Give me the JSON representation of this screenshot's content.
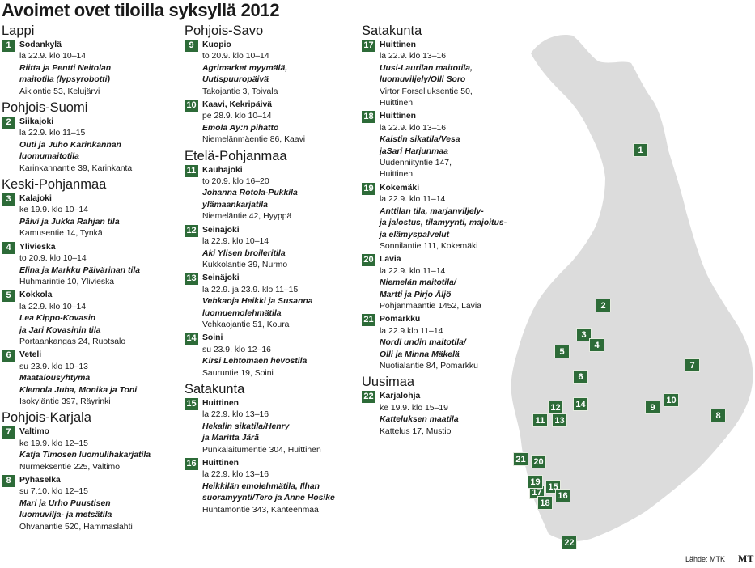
{
  "title": "Avoimet ovet tiloilla syksyllä 2012",
  "source": "Lähde: MTK",
  "logo": "MT",
  "col1": [
    {
      "region": "Lappi",
      "entries": [
        {
          "num": "1",
          "lines": [
            {
              "t": "Sodankylä",
              "s": "place"
            },
            {
              "t": "la 22.9. klo 10–14"
            },
            {
              "t": "Riitta ja Pentti Neitolan",
              "s": "farm"
            },
            {
              "t": "maitotila (lypsyrobotti)",
              "s": "farm"
            },
            {
              "t": "Aikiontie 53, Kelujärvi"
            }
          ]
        }
      ]
    },
    {
      "region": "Pohjois-Suomi",
      "entries": [
        {
          "num": "2",
          "lines": [
            {
              "t": "Siikajoki",
              "s": "place"
            },
            {
              "t": "la 22.9. klo 11–15"
            },
            {
              "t": "Outi ja Juho Karinkannan",
              "s": "farm"
            },
            {
              "t": "luomumaitotila",
              "s": "farm"
            },
            {
              "t": "Karinkannantie 39, Karinkanta"
            }
          ]
        }
      ]
    },
    {
      "region": "Keski-Pohjanmaa",
      "entries": [
        {
          "num": "3",
          "lines": [
            {
              "t": "Kalajoki",
              "s": "place"
            },
            {
              "t": "ke 19.9. klo 10–14"
            },
            {
              "t": "Päivi ja Jukka Rahjan tila",
              "s": "farm"
            },
            {
              "t": "Kamusentie 14, Tynkä"
            }
          ]
        },
        {
          "num": "4",
          "lines": [
            {
              "t": "Ylivieska",
              "s": "place"
            },
            {
              "t": "to 20.9. klo 10–14"
            },
            {
              "t": "Elina ja Markku Päivärinan tila",
              "s": "farm"
            },
            {
              "t": "Huhmarintie 10, Ylivieska"
            }
          ]
        },
        {
          "num": "5",
          "lines": [
            {
              "t": "Kokkola",
              "s": "place"
            },
            {
              "t": "la 22.9. klo 10–14"
            },
            {
              "t": "Lea Kippo-Kovasin",
              "s": "farm"
            },
            {
              "t": "ja Jari Kovasinin tila",
              "s": "farm"
            },
            {
              "t": "Portaankangas 24, Ruotsalo"
            }
          ]
        },
        {
          "num": "6",
          "lines": [
            {
              "t": "Veteli",
              "s": "place"
            },
            {
              "t": "su 23.9. klo 10–13"
            },
            {
              "t": "Maatalousyhtymä",
              "s": "farm"
            },
            {
              "t": "Klemola Juha, Monika ja Toni",
              "s": "farm"
            },
            {
              "t": "Isokyläntie 397, Räyrinki"
            }
          ]
        }
      ]
    },
    {
      "region": "Pohjois-Karjala",
      "entries": [
        {
          "num": "7",
          "lines": [
            {
              "t": "Valtimo",
              "s": "place"
            },
            {
              "t": "ke 19.9. klo 12–15"
            },
            {
              "t": "Katja Timosen luomulihakarjatila",
              "s": "farm"
            },
            {
              "t": "Nurmeksentie 225, Valtimo"
            }
          ]
        },
        {
          "num": "8",
          "lines": [
            {
              "t": "Pyhäselkä",
              "s": "place"
            },
            {
              "t": "su 7.10. klo 12–15"
            },
            {
              "t": "Mari ja Urho Puustisen",
              "s": "farm"
            },
            {
              "t": "luomuvilja- ja metsätila",
              "s": "farm"
            },
            {
              "t": "Ohvanantie 520, Hammaslahti"
            }
          ]
        }
      ]
    }
  ],
  "col2": [
    {
      "region": "Pohjois-Savo",
      "entries": [
        {
          "num": "9",
          "lines": [
            {
              "t": "Kuopio",
              "s": "place"
            },
            {
              "t": "to 20.9. klo 10–14"
            },
            {
              "t": "Agrimarket myymälä,",
              "s": "farm"
            },
            {
              "t": "Uutispuuropäivä",
              "s": "farm"
            },
            {
              "t": "Takojantie 3, Toivala"
            }
          ]
        },
        {
          "num": "10",
          "lines": [
            {
              "t": "Kaavi, Kekripäivä",
              "s": "place"
            },
            {
              "t": "pe 28.9. klo 10–14"
            },
            {
              "t": "Emola Ay:n pihatto",
              "s": "farm"
            },
            {
              "t": "Niemelänmäentie 86, Kaavi"
            }
          ]
        }
      ]
    },
    {
      "region": "Etelä-Pohjanmaa",
      "entries": [
        {
          "num": "11",
          "lines": [
            {
              "t": "Kauhajoki",
              "s": "place"
            },
            {
              "t": "to 20.9. klo 16–20"
            },
            {
              "t": "Johanna Rotola-Pukkila",
              "s": "farm"
            },
            {
              "t": "ylämaankarjatila",
              "s": "farm"
            },
            {
              "t": "Niemeläntie 42, Hyyppä"
            }
          ]
        },
        {
          "num": "12",
          "lines": [
            {
              "t": "Seinäjoki",
              "s": "place"
            },
            {
              "t": "la 22.9. klo 10–14"
            },
            {
              "t": "Aki Ylisen broileritila",
              "s": "farm"
            },
            {
              "t": "Kukkolantie 39, Nurmo"
            }
          ]
        },
        {
          "num": "13",
          "lines": [
            {
              "t": "Seinäjoki",
              "s": "place"
            },
            {
              "t": "la 22.9. ja 23.9. klo 11–15"
            },
            {
              "t": "Vehkaoja Heikki ja Susanna",
              "s": "farm"
            },
            {
              "t": "luomuemolehmätila",
              "s": "farm"
            },
            {
              "t": "Vehkaojantie 51, Koura"
            }
          ]
        },
        {
          "num": "14",
          "lines": [
            {
              "t": "Soini",
              "s": "place"
            },
            {
              "t": "su 23.9. klo 12–16"
            },
            {
              "t": "Kirsi Lehtomäen hevostila",
              "s": "farm"
            },
            {
              "t": "Sauruntie 19, Soini"
            }
          ]
        }
      ]
    },
    {
      "region": "Satakunta",
      "entries": [
        {
          "num": "15",
          "lines": [
            {
              "t": "Huittinen",
              "s": "place"
            },
            {
              "t": "la 22.9. klo 13–16"
            },
            {
              "t": "Hekalin sikatila/Henry",
              "s": "farm"
            },
            {
              "t": "ja Maritta Järä",
              "s": "farm"
            },
            {
              "t": "Punkalaitumentie 304, Huittinen"
            }
          ]
        },
        {
          "num": "16",
          "lines": [
            {
              "t": "Huittinen",
              "s": "place"
            },
            {
              "t": "la 22.9. klo 13–16"
            },
            {
              "t": "Heikkilän emolehmätila, Ilhan",
              "s": "farm"
            },
            {
              "t": "suoramyynti/Tero ja Anne Hosike",
              "s": "farm"
            },
            {
              "t": "Huhtamontie 343, Kanteenmaa"
            }
          ]
        }
      ]
    }
  ],
  "col3": [
    {
      "region": "Satakunta",
      "entries": [
        {
          "num": "17",
          "lines": [
            {
              "t": "Huittinen",
              "s": "place"
            },
            {
              "t": "la 22.9. klo 13–16"
            },
            {
              "t": "Uusi-Laurilan maitotila,",
              "s": "farm"
            },
            {
              "t": "luomuviljely/Olli Soro",
              "s": "farm"
            },
            {
              "t": "Virtor Forseliuksentie 50,"
            },
            {
              "t": "Huittinen"
            }
          ]
        },
        {
          "num": "18",
          "lines": [
            {
              "t": "Huittinen",
              "s": "place"
            },
            {
              "t": "la 22.9. klo 13–16"
            },
            {
              "t": "Kaistin sikatila/Vesa",
              "s": "farm"
            },
            {
              "t": "jaSari Harjunmaa",
              "s": "farm"
            },
            {
              "t": "Uudenniityntie 147,"
            },
            {
              "t": "Huittinen"
            }
          ]
        },
        {
          "num": "19",
          "lines": [
            {
              "t": "Kokemäki",
              "s": "place"
            },
            {
              "t": "la 22.9. klo 11–14"
            },
            {
              "t": "Anttilan tila, marjanviljely-",
              "s": "farm"
            },
            {
              "t": "ja jalostus, tilamyynti, majoitus-",
              "s": "farm"
            },
            {
              "t": "ja elämyspalvelut",
              "s": "farm"
            },
            {
              "t": "Sonnilantie 111, Kokemäki"
            }
          ]
        },
        {
          "num": "20",
          "lines": [
            {
              "t": "Lavia",
              "s": "place"
            },
            {
              "t": "la 22.9. klo 11–14"
            },
            {
              "t": "Niemelän maitotila/",
              "s": "farm"
            },
            {
              "t": "Martti ja Pirjo Äljö",
              "s": "farm"
            },
            {
              "t": "Pohjanmaantie 1452, Lavia"
            }
          ]
        },
        {
          "num": "21",
          "lines": [
            {
              "t": "Pomarkku",
              "s": "place"
            },
            {
              "t": "la 22.9.klo 11–14"
            },
            {
              "t": "Nordl undin maitotila/",
              "s": "farm"
            },
            {
              "t": "Olli ja Minna Mäkelä",
              "s": "farm"
            },
            {
              "t": "Nuotialantie 84, Pomarkku"
            }
          ]
        }
      ]
    },
    {
      "region": "Uusimaa",
      "entries": [
        {
          "num": "22",
          "lines": [
            {
              "t": "Karjalohja",
              "s": "place"
            },
            {
              "t": "ke 19.9. klo 15–19"
            },
            {
              "t": "Katteluksen maatila",
              "s": "farm"
            },
            {
              "t": "Kattelus 17, Mustio"
            }
          ]
        }
      ]
    }
  ],
  "map": {
    "fill": "#dcdcdc",
    "marker_color": "#2d6b38",
    "markers": [
      "1",
      "2",
      "3",
      "4",
      "5",
      "6",
      "7",
      "8",
      "9",
      "10",
      "11",
      "12",
      "13",
      "14",
      "15",
      "16",
      "17",
      "18",
      "19",
      "20",
      "21",
      "22"
    ]
  }
}
